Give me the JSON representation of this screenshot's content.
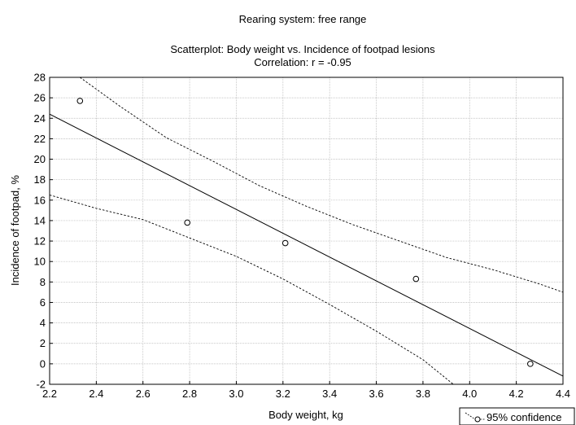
{
  "chart_data": {
    "type": "scatter",
    "suptitle": "Rearing system: free range",
    "title": "Scatterplot: Body weight vs. Incidence of footpad lesions",
    "subtitle": "Correlation: r = -0.95",
    "xlabel": "Body weight, kg",
    "ylabel": "Incidence of footpad, %",
    "xlim": [
      2.2,
      4.4
    ],
    "ylim": [
      -2,
      28
    ],
    "xticks": [
      "2.2",
      "2.4",
      "2.6",
      "2.8",
      "3.0",
      "3.2",
      "3.4",
      "3.6",
      "3.8",
      "4.0",
      "4.2",
      "4.4"
    ],
    "yticks": [
      "-2",
      "0",
      "2",
      "4",
      "6",
      "8",
      "10",
      "12",
      "14",
      "16",
      "18",
      "20",
      "22",
      "24",
      "26",
      "28"
    ],
    "grid": true,
    "points": [
      {
        "x": 2.33,
        "y": 25.7
      },
      {
        "x": 2.79,
        "y": 13.8
      },
      {
        "x": 3.21,
        "y": 11.8
      },
      {
        "x": 3.77,
        "y": 8.3
      },
      {
        "x": 4.26,
        "y": 0.0
      }
    ],
    "regression_line": [
      {
        "x": 2.2,
        "y": 24.4
      },
      {
        "x": 4.4,
        "y": -1.2
      }
    ],
    "confidence_upper": [
      {
        "x": 2.33,
        "y": 28.0
      },
      {
        "x": 2.5,
        "y": 25.2
      },
      {
        "x": 2.7,
        "y": 22.1
      },
      {
        "x": 2.9,
        "y": 19.8
      },
      {
        "x": 3.1,
        "y": 17.4
      },
      {
        "x": 3.3,
        "y": 15.4
      },
      {
        "x": 3.5,
        "y": 13.6
      },
      {
        "x": 3.7,
        "y": 12.0
      },
      {
        "x": 3.9,
        "y": 10.4
      },
      {
        "x": 4.1,
        "y": 9.2
      },
      {
        "x": 4.3,
        "y": 7.8
      },
      {
        "x": 4.4,
        "y": 7.0
      }
    ],
    "confidence_lower": [
      {
        "x": 2.2,
        "y": 16.5
      },
      {
        "x": 2.4,
        "y": 15.2
      },
      {
        "x": 2.6,
        "y": 14.1
      },
      {
        "x": 2.8,
        "y": 12.3
      },
      {
        "x": 3.0,
        "y": 10.5
      },
      {
        "x": 3.2,
        "y": 8.3
      },
      {
        "x": 3.4,
        "y": 5.8
      },
      {
        "x": 3.6,
        "y": 3.2
      },
      {
        "x": 3.8,
        "y": 0.4
      },
      {
        "x": 3.93,
        "y": -2.0
      }
    ],
    "legend": {
      "label": "95% confidence",
      "placement": "bottom-right"
    }
  }
}
